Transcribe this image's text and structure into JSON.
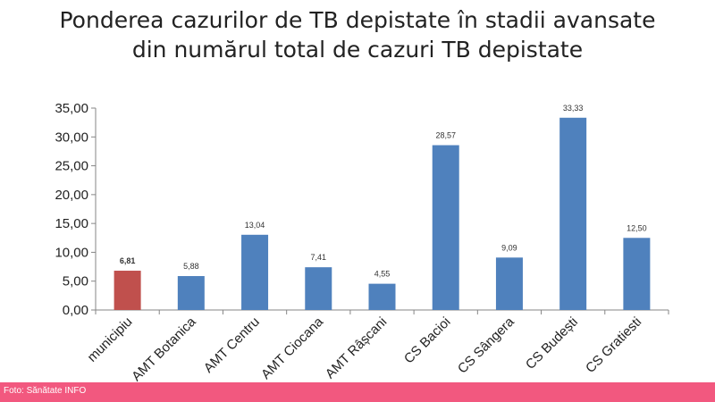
{
  "chart_data": {
    "type": "bar",
    "title": [
      "Ponderea cazurilor de TB depistate în stadii avansate",
      "din numărul total de cazuri TB depistate"
    ],
    "categories": [
      "municipiu",
      "AMT Botanica",
      "AMT Centru",
      "AMT Ciocana",
      "AMT Râșcani",
      "CS Bacioi",
      "CS Sângera",
      "CS Budești",
      "CS Gratiesti"
    ],
    "values": [
      6.81,
      5.88,
      13.04,
      7.41,
      4.55,
      28.57,
      9.09,
      33.33,
      12.5
    ],
    "value_labels": [
      "6,81",
      "5,88",
      "13,04",
      "7,41",
      "4,55",
      "28,57",
      "9,09",
      "33,33",
      "12,50"
    ],
    "ylim": [
      0,
      35
    ],
    "yticks": [
      "0,00",
      "5,00",
      "10,00",
      "15,00",
      "20,00",
      "25,00",
      "30,00",
      "35,00"
    ],
    "grid": false,
    "legend": false,
    "colors": {
      "highlight": "#C0504D",
      "default": "#4F81BD",
      "axis": "#868686"
    }
  },
  "footer": {
    "text": "Foto: Sănătate INFO",
    "color": "#F2587F"
  }
}
